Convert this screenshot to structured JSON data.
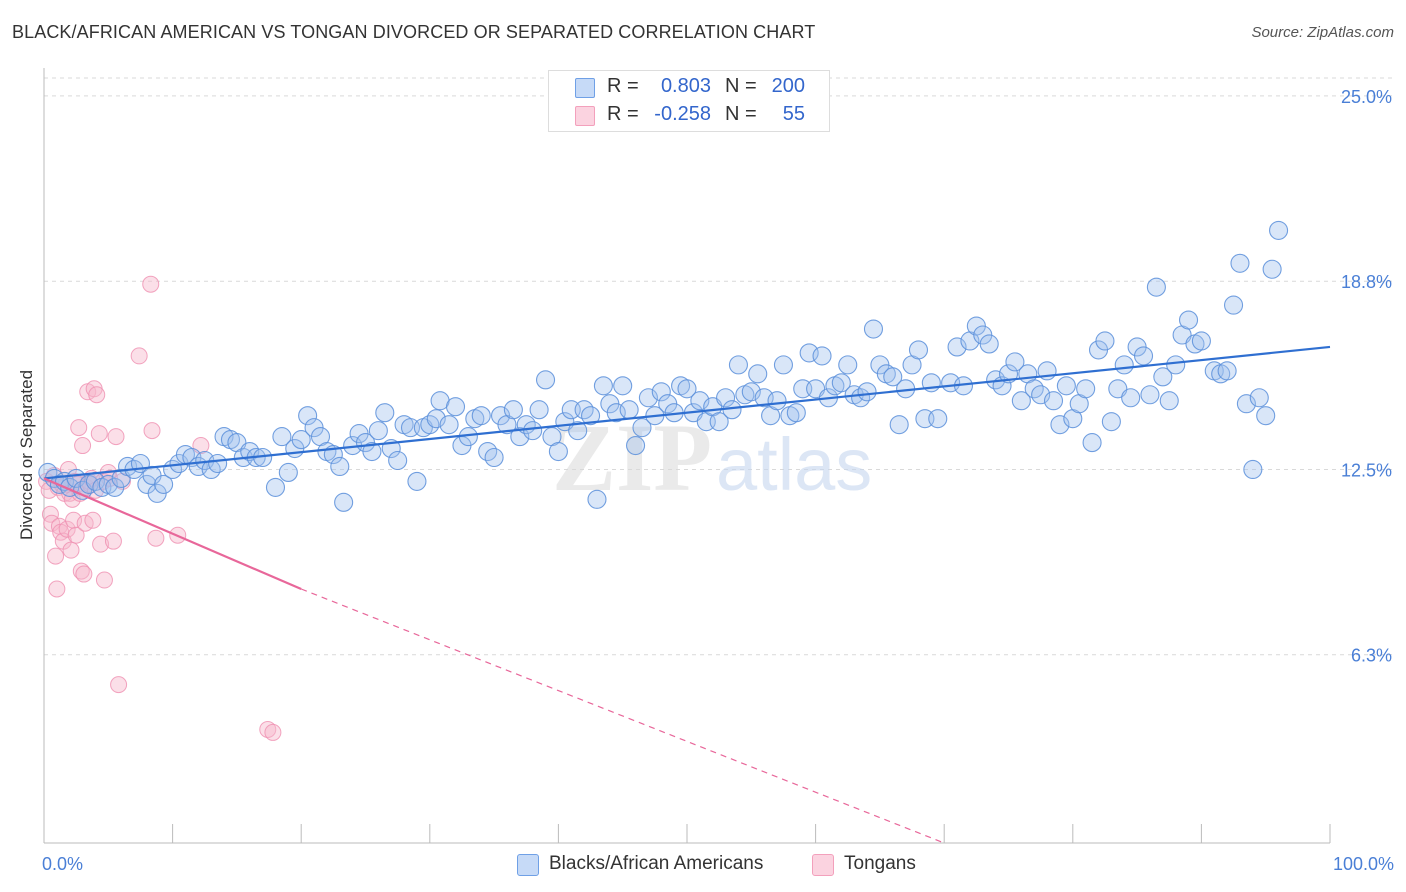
{
  "title": "BLACK/AFRICAN AMERICAN VS TONGAN DIVORCED OR SEPARATED CORRELATION CHART",
  "source": "Source: ZipAtlas.com",
  "watermark": {
    "zip": "ZIP",
    "atlas": "atlas"
  },
  "legend": {
    "rows": [
      {
        "r_label": "R =",
        "r_value": "0.803",
        "n_label": "N =",
        "n_value": "200",
        "color": "#6fa0e6"
      },
      {
        "r_label": "R =",
        "r_value": "-0.258",
        "n_label": "N =",
        "n_value": "55",
        "color": "#f3a0bc"
      }
    ]
  },
  "bottom_legend": {
    "items": [
      {
        "label": "Blacks/African Americans",
        "color": "#6fa0e6"
      },
      {
        "label": "Tongans",
        "color": "#f3a0bc"
      }
    ]
  },
  "chart_data": {
    "type": "scatter",
    "title": "BLACK/AFRICAN AMERICAN VS TONGAN DIVORCED OR SEPARATED CORRELATION CHART",
    "xlabel": "",
    "ylabel": "Divorced or Separated",
    "xlim": [
      0,
      100
    ],
    "ylim": [
      0,
      25.6
    ],
    "x_ticks": [
      {
        "value": 0,
        "label": "0.0%"
      },
      {
        "value": 100,
        "label": "100.0%"
      }
    ],
    "y_ticks": [
      {
        "value": 6.3,
        "label": "6.3%"
      },
      {
        "value": 12.5,
        "label": "12.5%"
      },
      {
        "value": 18.8,
        "label": "18.8%"
      },
      {
        "value": 25.0,
        "label": "25.0%"
      }
    ],
    "grid": true,
    "legend_position": "top-center",
    "series": [
      {
        "name": "Blacks/African Americans",
        "color": "#6fa0e6",
        "trend": {
          "x0": 0,
          "y0": 12.2,
          "x1": 100,
          "y1": 16.6
        },
        "points": [
          [
            0.3,
            12.4
          ],
          [
            0.8,
            12.2
          ],
          [
            1.2,
            12.0
          ],
          [
            1.6,
            12.1
          ],
          [
            2.0,
            11.9
          ],
          [
            2.5,
            12.2
          ],
          [
            3.0,
            11.8
          ],
          [
            3.5,
            12.0
          ],
          [
            4.0,
            12.1
          ],
          [
            4.5,
            11.9
          ],
          [
            5.0,
            12.0
          ],
          [
            5.5,
            11.9
          ],
          [
            6.0,
            12.2
          ],
          [
            6.5,
            12.6
          ],
          [
            7.0,
            12.5
          ],
          [
            7.5,
            12.7
          ],
          [
            8.0,
            12.0
          ],
          [
            8.4,
            12.3
          ],
          [
            8.8,
            11.7
          ],
          [
            9.3,
            12.0
          ],
          [
            10.0,
            12.5
          ],
          [
            10.5,
            12.7
          ],
          [
            11.0,
            13.0
          ],
          [
            11.5,
            12.9
          ],
          [
            12.0,
            12.6
          ],
          [
            12.5,
            12.8
          ],
          [
            13.0,
            12.5
          ],
          [
            13.5,
            12.7
          ],
          [
            14.0,
            13.6
          ],
          [
            14.5,
            13.5
          ],
          [
            15.0,
            13.4
          ],
          [
            15.5,
            12.9
          ],
          [
            16.0,
            13.1
          ],
          [
            16.5,
            12.9
          ],
          [
            17.0,
            12.9
          ],
          [
            18.0,
            11.9
          ],
          [
            18.5,
            13.6
          ],
          [
            19.0,
            12.4
          ],
          [
            19.5,
            13.2
          ],
          [
            20.0,
            13.5
          ],
          [
            20.5,
            14.3
          ],
          [
            21.0,
            13.9
          ],
          [
            21.5,
            13.6
          ],
          [
            22.0,
            13.1
          ],
          [
            22.5,
            13.0
          ],
          [
            23.0,
            12.6
          ],
          [
            23.3,
            11.4
          ],
          [
            24.0,
            13.3
          ],
          [
            24.5,
            13.7
          ],
          [
            25.0,
            13.4
          ],
          [
            25.5,
            13.1
          ],
          [
            26.0,
            13.8
          ],
          [
            26.5,
            14.4
          ],
          [
            27.0,
            13.2
          ],
          [
            27.5,
            12.8
          ],
          [
            28.0,
            14.0
          ],
          [
            28.5,
            13.9
          ],
          [
            29.0,
            12.1
          ],
          [
            29.5,
            13.9
          ],
          [
            30.0,
            14.0
          ],
          [
            30.5,
            14.2
          ],
          [
            30.8,
            14.8
          ],
          [
            31.5,
            14.0
          ],
          [
            32.0,
            14.6
          ],
          [
            32.5,
            13.3
          ],
          [
            33.0,
            13.6
          ],
          [
            33.5,
            14.2
          ],
          [
            34.0,
            14.3
          ],
          [
            34.5,
            13.1
          ],
          [
            35.0,
            12.9
          ],
          [
            35.5,
            14.3
          ],
          [
            36.0,
            14.0
          ],
          [
            36.5,
            14.5
          ],
          [
            37.0,
            13.6
          ],
          [
            37.5,
            14.0
          ],
          [
            38.0,
            13.8
          ],
          [
            38.5,
            14.5
          ],
          [
            39.0,
            15.5
          ],
          [
            39.5,
            13.6
          ],
          [
            40.0,
            13.1
          ],
          [
            40.5,
            14.1
          ],
          [
            41.0,
            14.5
          ],
          [
            41.5,
            13.8
          ],
          [
            42.0,
            14.5
          ],
          [
            42.5,
            14.3
          ],
          [
            43.0,
            11.5
          ],
          [
            43.5,
            15.3
          ],
          [
            44.0,
            14.7
          ],
          [
            44.5,
            14.4
          ],
          [
            45.0,
            15.3
          ],
          [
            45.5,
            14.5
          ],
          [
            46.0,
            13.3
          ],
          [
            46.5,
            13.9
          ],
          [
            47.0,
            14.9
          ],
          [
            47.5,
            14.3
          ],
          [
            48.0,
            15.1
          ],
          [
            48.5,
            14.7
          ],
          [
            49.0,
            14.4
          ],
          [
            49.5,
            15.3
          ],
          [
            50.0,
            15.2
          ],
          [
            50.5,
            14.4
          ],
          [
            51.0,
            14.8
          ],
          [
            51.5,
            14.1
          ],
          [
            52.0,
            14.6
          ],
          [
            52.5,
            14.1
          ],
          [
            53.0,
            14.9
          ],
          [
            53.5,
            14.5
          ],
          [
            54.0,
            16.0
          ],
          [
            54.5,
            15.0
          ],
          [
            55.0,
            15.1
          ],
          [
            55.5,
            15.7
          ],
          [
            56.0,
            14.9
          ],
          [
            56.5,
            14.3
          ],
          [
            57.0,
            14.8
          ],
          [
            57.5,
            16.0
          ],
          [
            58.0,
            14.3
          ],
          [
            58.5,
            14.4
          ],
          [
            59.0,
            15.2
          ],
          [
            59.5,
            16.4
          ],
          [
            60.0,
            15.2
          ],
          [
            60.5,
            16.3
          ],
          [
            61.0,
            14.9
          ],
          [
            61.5,
            15.3
          ],
          [
            62.0,
            15.4
          ],
          [
            62.5,
            16.0
          ],
          [
            63.0,
            15.0
          ],
          [
            63.5,
            14.9
          ],
          [
            64.0,
            15.1
          ],
          [
            64.5,
            17.2
          ],
          [
            65.0,
            16.0
          ],
          [
            65.5,
            15.7
          ],
          [
            66.0,
            15.6
          ],
          [
            66.5,
            14.0
          ],
          [
            67.0,
            15.2
          ],
          [
            67.5,
            16.0
          ],
          [
            68.0,
            16.5
          ],
          [
            68.5,
            14.2
          ],
          [
            69.0,
            15.4
          ],
          [
            69.5,
            14.2
          ],
          [
            70.5,
            15.4
          ],
          [
            71.0,
            16.6
          ],
          [
            71.5,
            15.3
          ],
          [
            72.0,
            16.8
          ],
          [
            72.5,
            17.3
          ],
          [
            73.0,
            17.0
          ],
          [
            73.5,
            16.7
          ],
          [
            74.0,
            15.5
          ],
          [
            74.5,
            15.3
          ],
          [
            75.0,
            15.7
          ],
          [
            75.5,
            16.1
          ],
          [
            76.0,
            14.8
          ],
          [
            76.5,
            15.7
          ],
          [
            77.0,
            15.2
          ],
          [
            77.5,
            15.0
          ],
          [
            78.0,
            15.8
          ],
          [
            78.5,
            14.8
          ],
          [
            79.0,
            14.0
          ],
          [
            79.5,
            15.3
          ],
          [
            80.0,
            14.2
          ],
          [
            80.5,
            14.7
          ],
          [
            81.0,
            15.2
          ],
          [
            81.5,
            13.4
          ],
          [
            82.0,
            16.5
          ],
          [
            82.5,
            16.8
          ],
          [
            83.0,
            14.1
          ],
          [
            83.5,
            15.2
          ],
          [
            84.0,
            16.0
          ],
          [
            84.5,
            14.9
          ],
          [
            85.0,
            16.6
          ],
          [
            85.5,
            16.3
          ],
          [
            86.0,
            15.0
          ],
          [
            86.5,
            18.6
          ],
          [
            87.0,
            15.6
          ],
          [
            87.5,
            14.8
          ],
          [
            88.0,
            16.0
          ],
          [
            88.5,
            17.0
          ],
          [
            89.0,
            17.5
          ],
          [
            89.5,
            16.7
          ],
          [
            90.0,
            16.8
          ],
          [
            91.0,
            15.8
          ],
          [
            91.5,
            15.7
          ],
          [
            92.0,
            15.8
          ],
          [
            92.5,
            18.0
          ],
          [
            93.0,
            19.4
          ],
          [
            93.5,
            14.7
          ],
          [
            94.0,
            12.5
          ],
          [
            94.5,
            14.9
          ],
          [
            95.0,
            14.3
          ],
          [
            95.5,
            19.2
          ],
          [
            96.0,
            20.5
          ]
        ]
      },
      {
        "name": "Tongans",
        "color": "#f3a0bc",
        "trend": {
          "x0": 0,
          "y0": 12.2,
          "x1": 20,
          "y1": 8.5,
          "dash_x1": 70,
          "dash_y1": 0
        },
        "points": [
          [
            0.2,
            12.1
          ],
          [
            0.4,
            11.8
          ],
          [
            0.5,
            11.0
          ],
          [
            0.6,
            10.7
          ],
          [
            0.8,
            12.3
          ],
          [
            0.9,
            9.6
          ],
          [
            1.0,
            8.5
          ],
          [
            1.1,
            11.9
          ],
          [
            1.2,
            10.6
          ],
          [
            1.3,
            10.4
          ],
          [
            1.4,
            12.0
          ],
          [
            1.5,
            10.1
          ],
          [
            1.6,
            11.7
          ],
          [
            1.7,
            12.0
          ],
          [
            1.8,
            10.5
          ],
          [
            1.9,
            12.5
          ],
          [
            2.0,
            11.7
          ],
          [
            2.1,
            9.8
          ],
          [
            2.2,
            11.5
          ],
          [
            2.3,
            10.8
          ],
          [
            2.4,
            12.1
          ],
          [
            2.5,
            10.3
          ],
          [
            2.6,
            12.0
          ],
          [
            2.7,
            13.9
          ],
          [
            2.8,
            11.7
          ],
          [
            2.9,
            9.1
          ],
          [
            3.0,
            13.3
          ],
          [
            3.1,
            9.0
          ],
          [
            3.2,
            10.7
          ],
          [
            3.3,
            11.9
          ],
          [
            3.4,
            15.1
          ],
          [
            3.5,
            12.1
          ],
          [
            3.6,
            12.0
          ],
          [
            3.7,
            12.2
          ],
          [
            3.8,
            10.8
          ],
          [
            3.9,
            15.2
          ],
          [
            4.0,
            11.8
          ],
          [
            4.1,
            15.0
          ],
          [
            4.3,
            13.7
          ],
          [
            4.4,
            10.0
          ],
          [
            4.6,
            12.1
          ],
          [
            4.7,
            8.8
          ],
          [
            5.0,
            12.4
          ],
          [
            5.1,
            12.2
          ],
          [
            5.4,
            10.1
          ],
          [
            5.6,
            13.6
          ],
          [
            5.8,
            5.3
          ],
          [
            6.1,
            12.1
          ],
          [
            7.4,
            16.3
          ],
          [
            8.3,
            18.7
          ],
          [
            8.4,
            13.8
          ],
          [
            8.7,
            10.2
          ],
          [
            10.4,
            10.3
          ],
          [
            12.2,
            13.3
          ],
          [
            17.4,
            3.8
          ],
          [
            17.8,
            3.7
          ]
        ]
      }
    ]
  }
}
